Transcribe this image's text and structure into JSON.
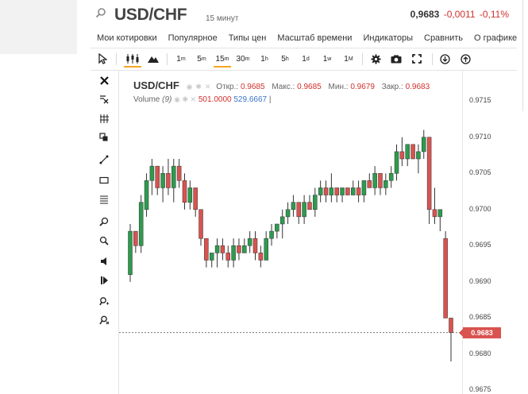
{
  "header": {
    "symbol": "USD/CHF",
    "timeframe": "15 минут",
    "price": "0,9683",
    "change": "-0,0011",
    "change_pct": "-0,11%"
  },
  "menu": [
    "Мои котировки",
    "Популярное",
    "Типы цен",
    "Масштаб времени",
    "Индикаторы",
    "Сравнить",
    "О графике"
  ],
  "toolbar": {
    "timeframes": [
      {
        "n": "1",
        "u": "m"
      },
      {
        "n": "5",
        "u": "m"
      },
      {
        "n": "15",
        "u": "m"
      },
      {
        "n": "30",
        "u": "m"
      },
      {
        "n": "1",
        "u": "h"
      },
      {
        "n": "5",
        "u": "h"
      },
      {
        "n": "1",
        "u": "d"
      },
      {
        "n": "1",
        "u": "w"
      },
      {
        "n": "1",
        "u": "M"
      }
    ],
    "active_timeframe": "15m"
  },
  "legend": {
    "symbol": "USD/CHF",
    "open_label": "Откр.:",
    "open": "0.9685",
    "high_label": "Макс.:",
    "high": "0.9685",
    "low_label": "Мин.:",
    "low": "0.9679",
    "close_label": "Закр.:",
    "close": "0.9683",
    "volume_label": "Volume",
    "volume_period": "(9)",
    "volume_val1": "501.0000",
    "volume_val2": "529.6667"
  },
  "y_axis": {
    "ticks": [
      "0.9715",
      "0.9710",
      "0.9705",
      "0.9700",
      "0.9695",
      "0.9690",
      "0.9685",
      "0.9680",
      "0.9675"
    ],
    "current_price_tag": "0.9683"
  },
  "colors": {
    "up": "#2e9b4e",
    "down": "#d9534f",
    "accent": "#f5a623"
  },
  "chart_data": {
    "type": "candlestick",
    "ylim": [
      0.96745,
      0.97193
    ],
    "current_price": 0.9683,
    "candles": [
      [
        0.9691,
        0.9698,
        0.969,
        0.9697
      ],
      [
        0.9697,
        0.9697,
        0.9694,
        0.9695
      ],
      [
        0.9695,
        0.9702,
        0.9694,
        0.9701
      ],
      [
        0.97,
        0.9705,
        0.9699,
        0.9704
      ],
      [
        0.9704,
        0.9707,
        0.9702,
        0.9706
      ],
      [
        0.9706,
        0.9706,
        0.9702,
        0.9703
      ],
      [
        0.9703,
        0.9706,
        0.9701,
        0.9705
      ],
      [
        0.9705,
        0.9707,
        0.9702,
        0.9703
      ],
      [
        0.9703,
        0.9707,
        0.9701,
        0.9706
      ],
      [
        0.9706,
        0.9707,
        0.9703,
        0.9704
      ],
      [
        0.9704,
        0.9705,
        0.97,
        0.9701
      ],
      [
        0.9701,
        0.9704,
        0.97,
        0.9703
      ],
      [
        0.9703,
        0.9703,
        0.9699,
        0.97
      ],
      [
        0.97,
        0.97,
        0.9695,
        0.9696
      ],
      [
        0.9696,
        0.9696,
        0.9692,
        0.9693
      ],
      [
        0.9693,
        0.9694,
        0.9692,
        0.9694
      ],
      [
        0.9694,
        0.9696,
        0.9692,
        0.9695
      ],
      [
        0.9695,
        0.9696,
        0.9693,
        0.9694
      ],
      [
        0.9694,
        0.9695,
        0.9692,
        0.9693
      ],
      [
        0.9693,
        0.9696,
        0.9692,
        0.9695
      ],
      [
        0.9695,
        0.9696,
        0.9693,
        0.9694
      ],
      [
        0.9694,
        0.9696,
        0.9694,
        0.9695
      ],
      [
        0.9695,
        0.9697,
        0.9694,
        0.9696
      ],
      [
        0.9696,
        0.9697,
        0.9693,
        0.9694
      ],
      [
        0.9694,
        0.9695,
        0.9692,
        0.9693
      ],
      [
        0.9693,
        0.9697,
        0.9693,
        0.9696
      ],
      [
        0.9696,
        0.9698,
        0.9695,
        0.9697
      ],
      [
        0.9697,
        0.9698,
        0.9696,
        0.9698
      ],
      [
        0.9698,
        0.97,
        0.9696,
        0.9699
      ],
      [
        0.9699,
        0.9701,
        0.9698,
        0.97
      ],
      [
        0.97,
        0.9702,
        0.9699,
        0.9701
      ],
      [
        0.9701,
        0.9701,
        0.9698,
        0.9699
      ],
      [
        0.9699,
        0.9702,
        0.9698,
        0.9701
      ],
      [
        0.9701,
        0.9702,
        0.97,
        0.97
      ],
      [
        0.97,
        0.9703,
        0.9699,
        0.9702
      ],
      [
        0.9702,
        0.9704,
        0.9701,
        0.9703
      ],
      [
        0.9703,
        0.9704,
        0.9701,
        0.9702
      ],
      [
        0.9702,
        0.9705,
        0.9701,
        0.9703
      ],
      [
        0.9703,
        0.9703,
        0.9701,
        0.9702
      ],
      [
        0.9702,
        0.9703,
        0.9701,
        0.9703
      ],
      [
        0.9703,
        0.9703,
        0.9702,
        0.9702
      ],
      [
        0.9702,
        0.9704,
        0.9702,
        0.9703
      ],
      [
        0.9703,
        0.9704,
        0.9701,
        0.9702
      ],
      [
        0.9702,
        0.9704,
        0.9701,
        0.9704
      ],
      [
        0.9704,
        0.9705,
        0.9703,
        0.9703
      ],
      [
        0.9703,
        0.9706,
        0.9702,
        0.9705
      ],
      [
        0.9705,
        0.9705,
        0.9702,
        0.9703
      ],
      [
        0.9703,
        0.9705,
        0.9702,
        0.9704
      ],
      [
        0.9704,
        0.9706,
        0.9703,
        0.9705
      ],
      [
        0.9705,
        0.9709,
        0.9704,
        0.9708
      ],
      [
        0.9708,
        0.971,
        0.9706,
        0.9707
      ],
      [
        0.9707,
        0.9709,
        0.9706,
        0.9709
      ],
      [
        0.9709,
        0.9709,
        0.9707,
        0.9707
      ],
      [
        0.9707,
        0.9709,
        0.9705,
        0.9708
      ],
      [
        0.9708,
        0.9711,
        0.9707,
        0.971
      ],
      [
        0.971,
        0.971,
        0.9698,
        0.97
      ],
      [
        0.97,
        0.9703,
        0.9698,
        0.9699
      ],
      [
        0.9699,
        0.97,
        0.9697,
        0.97
      ],
      [
        0.9696,
        0.9697,
        0.9685,
        0.9685
      ],
      [
        0.9685,
        0.9685,
        0.9679,
        0.9683
      ]
    ]
  }
}
